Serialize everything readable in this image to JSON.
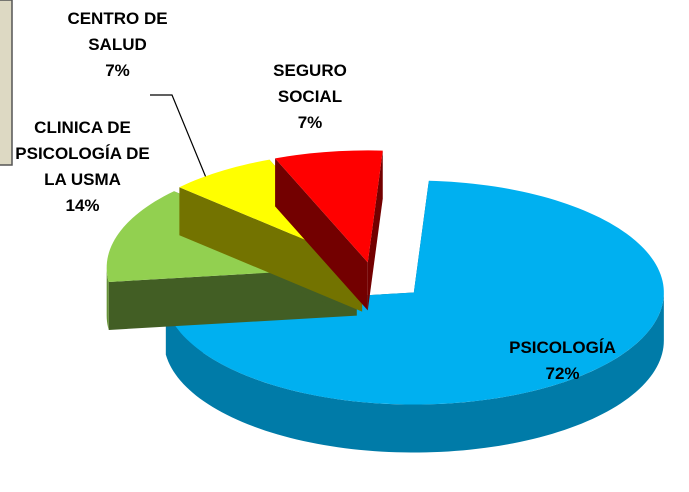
{
  "chart_data": {
    "type": "pie",
    "categories": [
      "PSICOLOGÍA",
      "CLINICA DE PSICOLOGÍA DE LA USMA",
      "CENTRO DE SALUD",
      "SEGURO SOCIAL"
    ],
    "values": [
      72,
      14,
      7,
      7
    ],
    "value_labels": [
      "72%",
      "14%",
      "7%",
      "7%"
    ],
    "colors": [
      "#00b0f0",
      "#92d050",
      "#ffff00",
      "#ff0000"
    ]
  }
}
